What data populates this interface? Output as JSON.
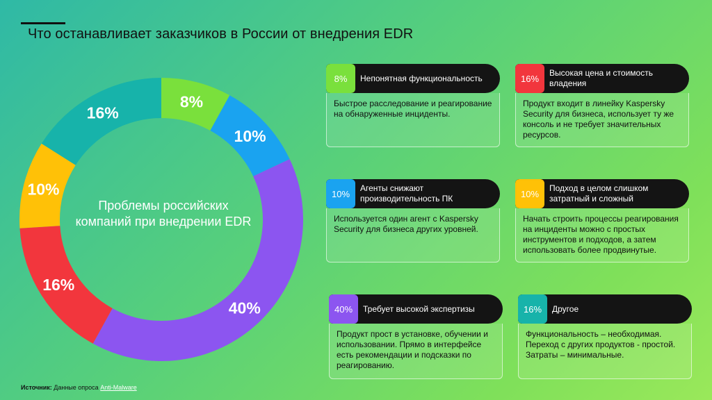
{
  "title": "Что останавливает заказчиков в России от внедрения EDR",
  "center_label": "Проблемы российских компаний при внедрении EDR",
  "source": {
    "label": "Источник:",
    "text": "Данные опроса",
    "link": "Anti-Malware"
  },
  "chart_data": {
    "type": "pie",
    "donut": true,
    "title": "",
    "categories": [
      "Непонятная функциональность",
      "Агенты снижают производительность ПК",
      "Требует высокой экспертизы",
      "Высокая цена и стоимость владения",
      "Подход в целом слишком затратный и сложный",
      "Другое"
    ],
    "values": [
      8,
      10,
      40,
      16,
      10,
      16
    ],
    "labels": [
      "8%",
      "10%",
      "40%",
      "16%",
      "10%",
      "16%"
    ],
    "colors": [
      "#7ae03c",
      "#1aa3f0",
      "#8c55f0",
      "#f2363d",
      "#ffc107",
      "#17b3aa"
    ]
  },
  "cards": {
    "c1": {
      "pct": "8%",
      "color": "#7ae03c",
      "title": "Непонятная функциональность",
      "text": "Быстрое расследование и реагирование на обнаруженные инциденты."
    },
    "c2": {
      "pct": "16%",
      "color": "#f2363d",
      "title": "Высокая цена и стоимость владения",
      "text": "Продукт входит в линейку Kaspersky Security для бизнеса, использует ту же консоль и не требует значительных ресурсов."
    },
    "c3": {
      "pct": "10%",
      "color": "#1aa3f0",
      "title": "Агенты снижают производительность ПК",
      "text": "Используется один агент с Kaspersky Security для бизнеса других уровней."
    },
    "c4": {
      "pct": "10%",
      "color": "#ffc107",
      "title": "Подход в целом слишком затратный и сложный",
      "text": "Начать строить процессы реагирования на инциденты можно с простых инструментов и подходов, а затем использовать более продвинутые."
    },
    "c5": {
      "pct": "40%",
      "color": "#8c55f0",
      "title": "Требует высокой экспертизы",
      "text": "Продукт прост в установке, обучении и использовании. Прямо в интерфейсе есть рекомендации и подсказки по реагированию."
    },
    "c6": {
      "pct": "16%",
      "color": "#17b3aa",
      "title": "Другое",
      "text": "Функциональность – необходимая. Переход с других продуктов - простой. Затраты – минимальные."
    }
  }
}
